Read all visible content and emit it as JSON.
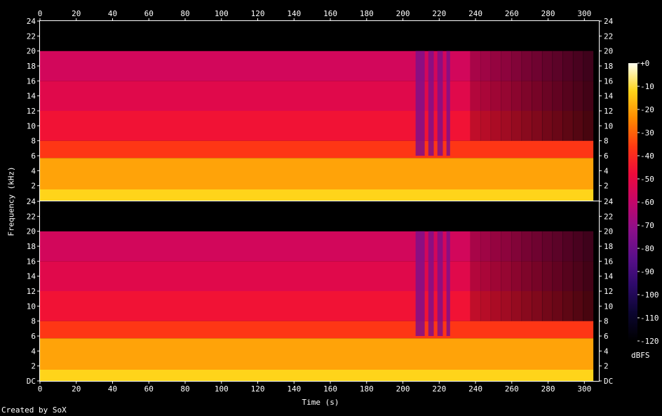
{
  "credit": "Created by SoX",
  "chart_data": {
    "type": "heatmap",
    "title": "",
    "xlabel": "Time (s)",
    "ylabel": "Frequency (kHz)",
    "colorbar_label": "dBFS",
    "x_ticks": [
      0,
      20,
      40,
      60,
      80,
      100,
      120,
      140,
      160,
      180,
      200,
      220,
      240,
      260,
      280,
      300
    ],
    "xlim": [
      0,
      308
    ],
    "ylim": [
      0,
      24
    ],
    "top_channel_y_ticks": [
      "2",
      "4",
      "6",
      "8",
      "10",
      "12",
      "14",
      "16",
      "18",
      "20",
      "22",
      "24"
    ],
    "bottom_channel_y_ticks": [
      "DC",
      "2",
      "4",
      "6",
      "8",
      "10",
      "12",
      "14",
      "16",
      "18",
      "20",
      "22",
      "24"
    ],
    "colorbar_ticks": [
      "+0",
      "-10",
      "-20",
      "-30",
      "-40",
      "-50",
      "-60",
      "-70",
      "-80",
      "-90",
      "-100",
      "-110",
      "-120"
    ],
    "colorbar_range": [
      -120,
      0
    ],
    "channels": [
      {
        "bands": [
          {
            "from_khz": 0,
            "to_khz": 1.5,
            "level_db": -12
          },
          {
            "from_khz": 1.5,
            "to_khz": 5.7,
            "level_db": -20
          },
          {
            "from_khz": 5.7,
            "to_khz": 8,
            "level_db": -37
          },
          {
            "from_khz": 8,
            "to_khz": 12,
            "level_db": -46
          },
          {
            "from_khz": 12,
            "to_khz": 16,
            "level_db": -52
          },
          {
            "from_khz": 16,
            "to_khz": 20,
            "level_db": -56
          },
          {
            "from_khz": 20,
            "to_khz": 24,
            "level_db": -120
          }
        ],
        "cutoff_khz": 20,
        "dropout_intervals_s": [
          [
            207,
            212
          ],
          [
            214,
            217
          ],
          [
            219,
            222
          ],
          [
            224,
            226
          ]
        ],
        "taper_interval_s": [
          237,
          305
        ],
        "silence_after_s": 305
      },
      {
        "bands": [
          {
            "from_khz": 0,
            "to_khz": 1.5,
            "level_db": -12
          },
          {
            "from_khz": 1.5,
            "to_khz": 5.7,
            "level_db": -20
          },
          {
            "from_khz": 5.7,
            "to_khz": 8,
            "level_db": -37
          },
          {
            "from_khz": 8,
            "to_khz": 12,
            "level_db": -46
          },
          {
            "from_khz": 12,
            "to_khz": 16,
            "level_db": -52
          },
          {
            "from_khz": 16,
            "to_khz": 20,
            "level_db": -56
          },
          {
            "from_khz": 20,
            "to_khz": 24,
            "level_db": -120
          }
        ],
        "cutoff_khz": 20,
        "dropout_intervals_s": [
          [
            207,
            212
          ],
          [
            214,
            217
          ],
          [
            219,
            222
          ],
          [
            224,
            226
          ]
        ],
        "taper_interval_s": [
          237,
          305
        ],
        "silence_after_s": 305
      }
    ]
  }
}
